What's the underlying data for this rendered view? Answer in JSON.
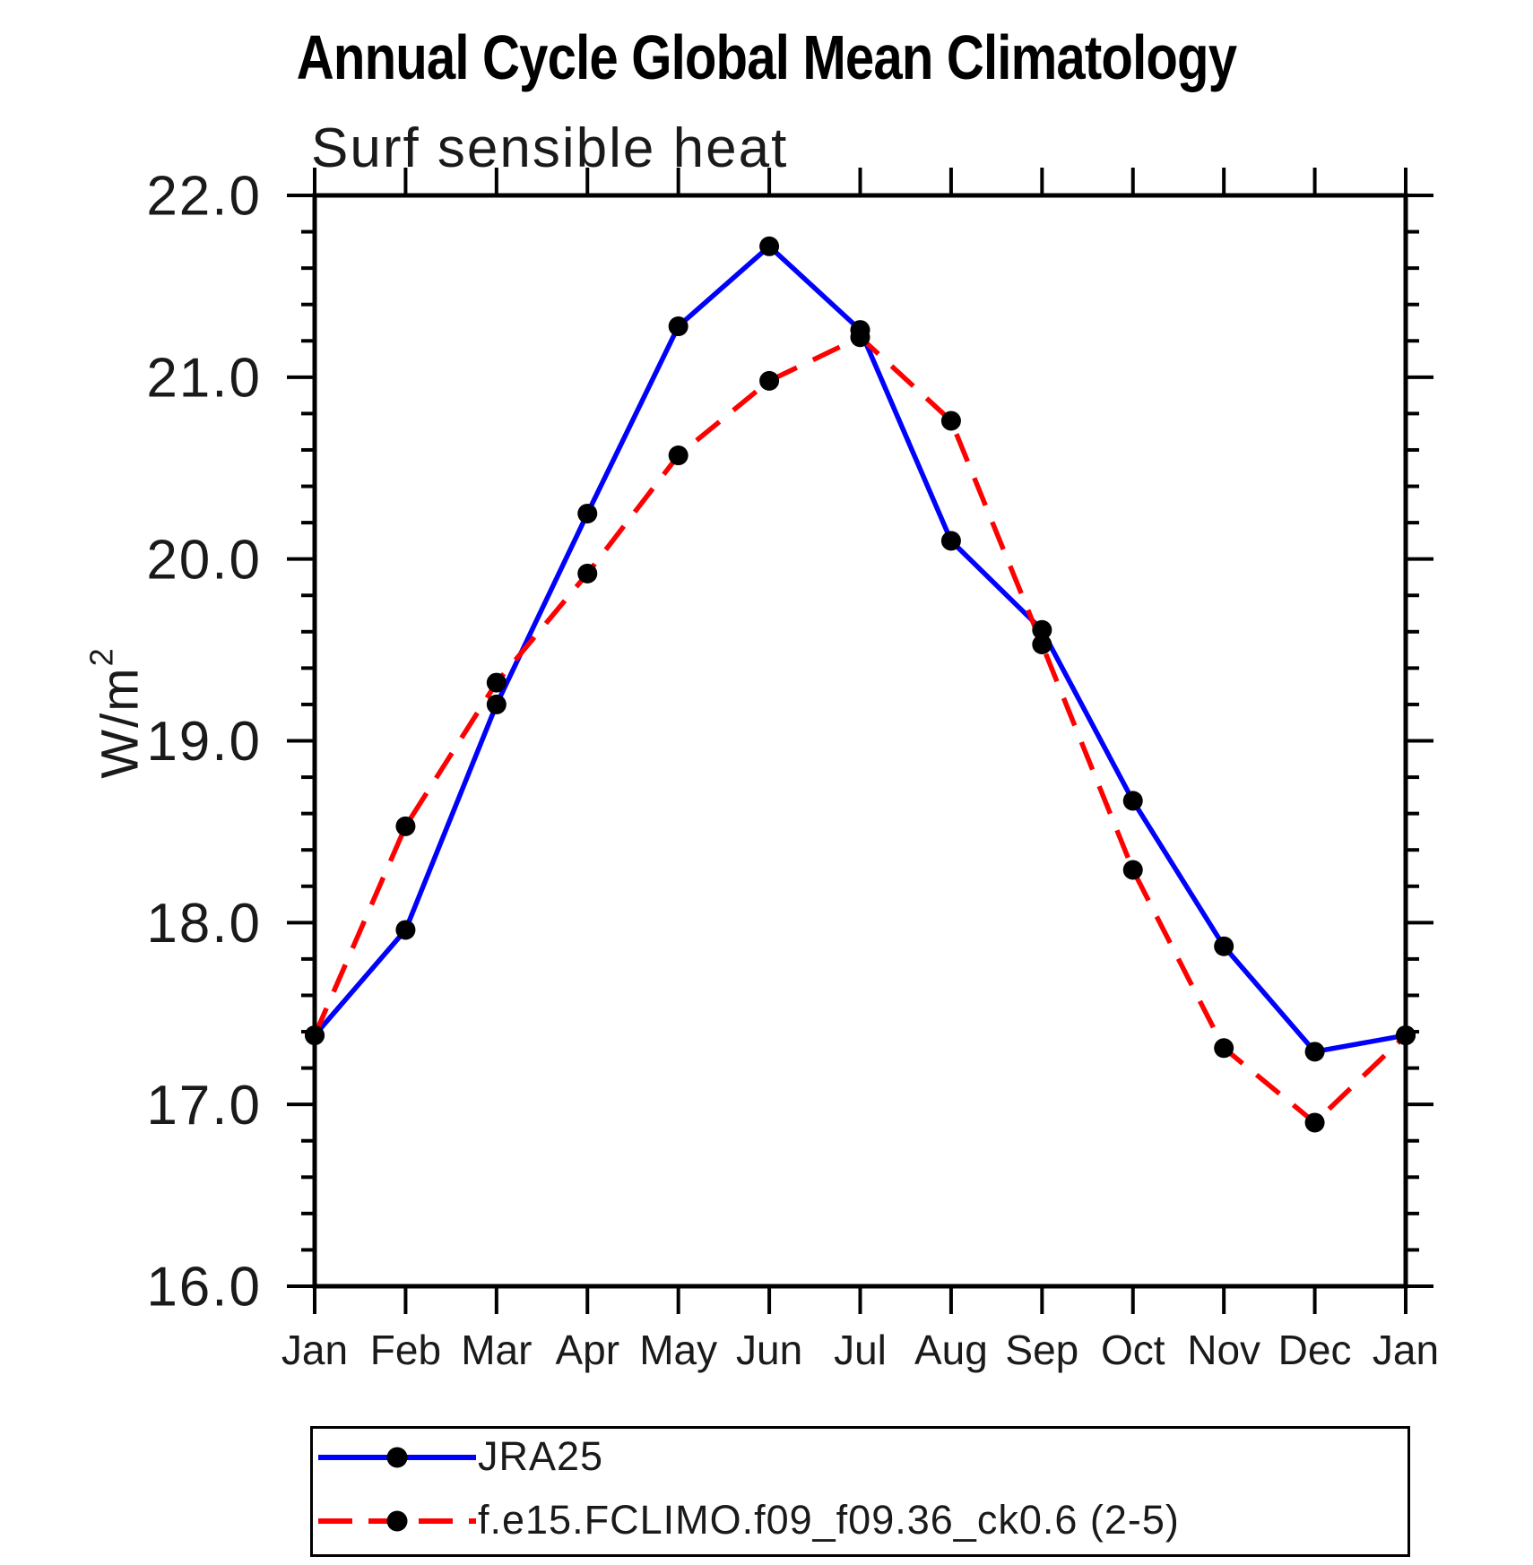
{
  "title": "Annual Cycle Global Mean Climatology",
  "subtitle": "Surf sensible heat",
  "y_axis_label": {
    "text": "W/m",
    "exponent": "2"
  },
  "legend": {
    "position": "bottom",
    "items": [
      {
        "label": "JRA25",
        "line_color": "#0000FF",
        "line_style": "solid",
        "marker": "filled-circle",
        "marker_color": "#000000"
      },
      {
        "label": "f.e15.FCLIMO.f09_f09.36_ck0.6 (2-5)",
        "line_color": "#FF0000",
        "line_style": "dashed",
        "marker": "filled-circle",
        "marker_color": "#000000"
      }
    ]
  },
  "chart_data": {
    "type": "line",
    "title": "Annual Cycle Global Mean Climatology",
    "subtitle": "Surf sensible heat",
    "xlabel": "",
    "ylabel": "W/m²",
    "x_categories": [
      "Jan",
      "Feb",
      "Mar",
      "Apr",
      "May",
      "Jun",
      "Jul",
      "Aug",
      "Sep",
      "Oct",
      "Nov",
      "Dec",
      "Jan"
    ],
    "ylim": [
      16.0,
      22.0
    ],
    "ytick_values": [
      16.0,
      17.0,
      18.0,
      19.0,
      20.0,
      21.0,
      22.0
    ],
    "ytick_labels": [
      "16.0",
      "17.0",
      "18.0",
      "19.0",
      "20.0",
      "21.0",
      "22.0"
    ],
    "ytick_minor_step": 0.2,
    "grid": false,
    "legend_position": "bottom",
    "series": [
      {
        "name": "JRA25",
        "color": "#0000FF",
        "style": "solid",
        "marker": "circle",
        "marker_color": "#000000",
        "values": [
          17.38,
          17.96,
          19.2,
          20.25,
          21.28,
          21.72,
          21.26,
          20.1,
          19.61,
          18.67,
          17.87,
          17.29,
          17.38
        ]
      },
      {
        "name": "f.e15.FCLIMO.f09_f09.36_ck0.6 (2-5)",
        "color": "#FF0000",
        "style": "dashed",
        "marker": "circle",
        "marker_color": "#000000",
        "values": [
          17.38,
          18.53,
          19.32,
          19.92,
          20.57,
          20.98,
          21.22,
          20.76,
          19.53,
          18.29,
          17.31,
          16.9,
          17.38
        ]
      }
    ]
  }
}
